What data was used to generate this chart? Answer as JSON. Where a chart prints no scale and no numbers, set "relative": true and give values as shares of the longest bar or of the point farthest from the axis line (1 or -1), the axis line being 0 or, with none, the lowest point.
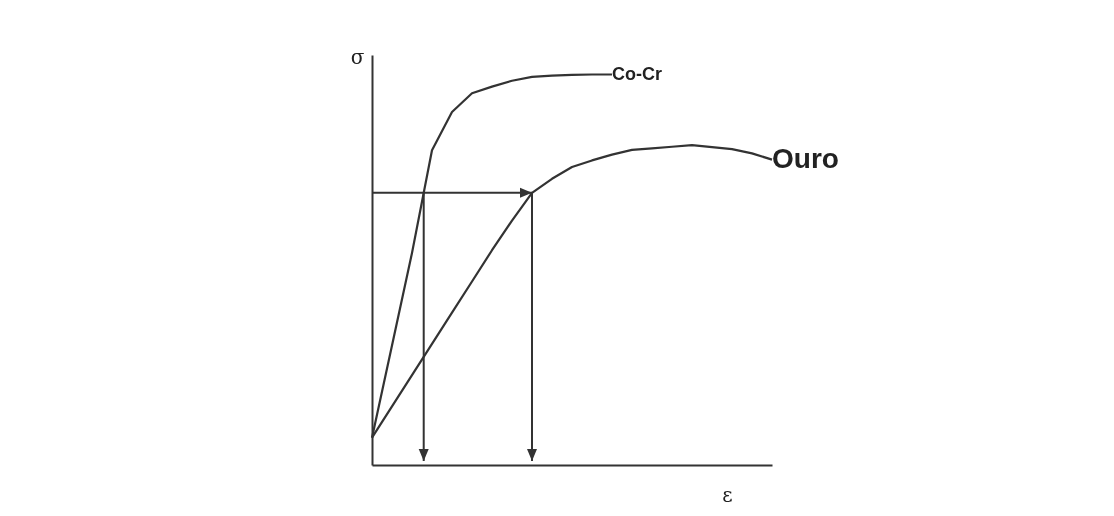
{
  "chart_data": {
    "type": "line",
    "relative": true,
    "xlabel": "ε",
    "ylabel": "σ",
    "legend": false,
    "marker": "none",
    "line_style": "solid",
    "categories": [
      null,
      null,
      null,
      null,
      null,
      null,
      null,
      null,
      null,
      null,
      null,
      null,
      null,
      null,
      null,
      null,
      null,
      null,
      null,
      null,
      null
    ],
    "series": [
      {
        "name": "Co-Cr",
        "color": "#333333",
        "values": [
          0.07,
          0.306,
          0.543,
          0.806,
          0.904,
          0.952,
          0.969,
          0.984,
          0.994,
          0.997,
          0.999,
          1,
          1,
          null,
          null,
          null,
          null,
          null,
          null,
          null,
          null
        ]
      },
      {
        "name": "Ouro",
        "color": "#333333",
        "values": [
          0.07,
          0.15,
          0.23,
          0.31,
          0.39,
          0.47,
          0.55,
          0.626,
          0.697,
          0.733,
          0.763,
          0.78,
          0.795,
          0.807,
          0.811,
          0.815,
          0.819,
          0.814,
          0.809,
          0.798,
          0.782
        ]
      }
    ]
  }
}
